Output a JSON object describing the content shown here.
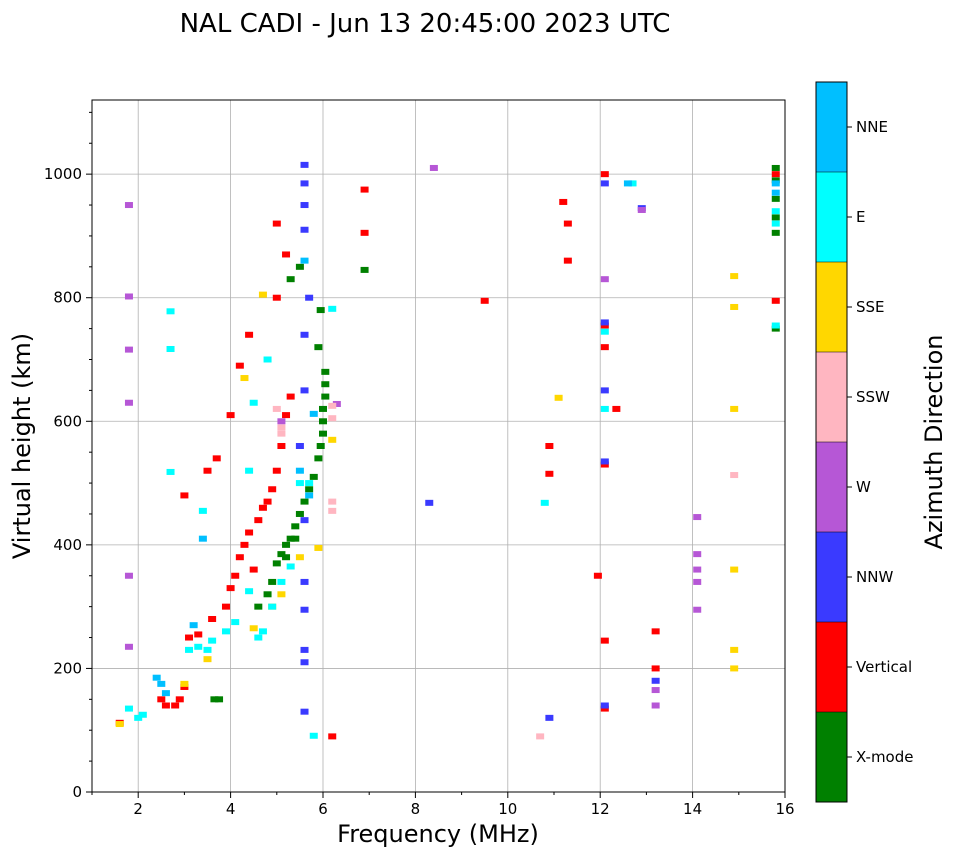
{
  "chart_data": {
    "type": "scatter",
    "title": "NAL CADI - Jun 13 20:45:00 2023 UTC",
    "xlabel": "Frequency (MHz)",
    "ylabel": "Virtual height (km)",
    "xlim": [
      1,
      16
    ],
    "ylim": [
      0,
      1120
    ],
    "xticks": [
      2,
      4,
      6,
      8,
      10,
      12,
      14,
      16
    ],
    "yticks": [
      0,
      200,
      400,
      600,
      800,
      1000
    ],
    "grid": true,
    "colorbar": {
      "label": "Azimuth Direction",
      "categories": [
        "X-mode",
        "Vertical",
        "NNW",
        "W",
        "SSW",
        "SSE",
        "E",
        "NNE"
      ],
      "colors": [
        "#008000",
        "#ff0000",
        "#3a3aff",
        "#b657d6",
        "#ffb6c1",
        "#ffd700",
        "#00ffff",
        "#00bfff"
      ]
    },
    "series": [
      {
        "name": "X-mode",
        "points": [
          [
            3.65,
            150
          ],
          [
            3.75,
            150
          ],
          [
            4.6,
            300
          ],
          [
            4.8,
            320
          ],
          [
            4.9,
            340
          ],
          [
            5.0,
            370
          ],
          [
            5.1,
            385
          ],
          [
            5.2,
            400
          ],
          [
            5.3,
            410
          ],
          [
            5.4,
            430
          ],
          [
            5.5,
            450
          ],
          [
            5.6,
            470
          ],
          [
            5.7,
            490
          ],
          [
            5.8,
            510
          ],
          [
            5.9,
            540
          ],
          [
            5.95,
            560
          ],
          [
            6.0,
            580
          ],
          [
            6.0,
            600
          ],
          [
            6.0,
            620
          ],
          [
            6.05,
            640
          ],
          [
            6.05,
            660
          ],
          [
            6.05,
            680
          ],
          [
            5.9,
            720
          ],
          [
            5.95,
            780
          ],
          [
            5.5,
            850
          ],
          [
            5.3,
            830
          ],
          [
            5.4,
            410
          ],
          [
            5.2,
            380
          ],
          [
            6.9,
            845
          ],
          [
            15.8,
            1010
          ],
          [
            15.8,
            990
          ],
          [
            15.8,
            960
          ],
          [
            15.8,
            930
          ],
          [
            15.8,
            905
          ],
          [
            15.8,
            750
          ]
        ]
      },
      {
        "name": "Vertical",
        "points": [
          [
            1.6,
            112
          ],
          [
            2.5,
            150
          ],
          [
            2.6,
            140
          ],
          [
            2.8,
            140
          ],
          [
            2.9,
            150
          ],
          [
            3.0,
            170
          ],
          [
            3.1,
            250
          ],
          [
            3.3,
            255
          ],
          [
            3.6,
            280
          ],
          [
            3.9,
            300
          ],
          [
            4.0,
            330
          ],
          [
            4.1,
            350
          ],
          [
            4.2,
            380
          ],
          [
            4.3,
            400
          ],
          [
            4.4,
            420
          ],
          [
            4.5,
            360
          ],
          [
            4.6,
            440
          ],
          [
            4.7,
            460
          ],
          [
            4.8,
            470
          ],
          [
            4.9,
            490
          ],
          [
            5.0,
            520
          ],
          [
            5.1,
            560
          ],
          [
            5.2,
            610
          ],
          [
            5.3,
            640
          ],
          [
            4.0,
            610
          ],
          [
            4.2,
            690
          ],
          [
            4.4,
            740
          ],
          [
            3.7,
            540
          ],
          [
            3.5,
            520
          ],
          [
            3.0,
            480
          ],
          [
            5.0,
            800
          ],
          [
            5.2,
            870
          ],
          [
            5.0,
            920
          ],
          [
            6.2,
            90
          ],
          [
            6.9,
            905
          ],
          [
            6.9,
            975
          ],
          [
            10.9,
            560
          ],
          [
            10.9,
            515
          ],
          [
            11.3,
            920
          ],
          [
            11.3,
            860
          ],
          [
            11.2,
            955
          ],
          [
            9.5,
            795
          ],
          [
            12.1,
            1000
          ],
          [
            12.1,
            720
          ],
          [
            12.1,
            755
          ],
          [
            12.1,
            530
          ],
          [
            12.1,
            245
          ],
          [
            12.1,
            135
          ],
          [
            11.95,
            350
          ],
          [
            12.35,
            620
          ],
          [
            13.2,
            260
          ],
          [
            13.2,
            200
          ],
          [
            15.8,
            795
          ],
          [
            15.8,
            1000
          ]
        ]
      },
      {
        "name": "NNW",
        "points": [
          [
            5.6,
            1015
          ],
          [
            5.6,
            985
          ],
          [
            5.6,
            950
          ],
          [
            5.6,
            910
          ],
          [
            5.7,
            800
          ],
          [
            5.6,
            740
          ],
          [
            5.6,
            650
          ],
          [
            5.6,
            440
          ],
          [
            5.6,
            340
          ],
          [
            5.6,
            295
          ],
          [
            5.6,
            230
          ],
          [
            5.6,
            210
          ],
          [
            5.6,
            130
          ],
          [
            5.5,
            560
          ],
          [
            8.3,
            468
          ],
          [
            10.9,
            120
          ],
          [
            12.1,
            985
          ],
          [
            12.1,
            760
          ],
          [
            12.1,
            650
          ],
          [
            12.1,
            535
          ],
          [
            12.1,
            140
          ],
          [
            13.2,
            180
          ],
          [
            12.9,
            945
          ]
        ]
      },
      {
        "name": "W",
        "points": [
          [
            1.8,
            950
          ],
          [
            1.8,
            802
          ],
          [
            1.8,
            716
          ],
          [
            1.8,
            630
          ],
          [
            1.8,
            350
          ],
          [
            1.8,
            235
          ],
          [
            5.1,
            600
          ],
          [
            6.3,
            628
          ],
          [
            8.4,
            1010
          ],
          [
            12.9,
            942
          ],
          [
            14.1,
            445
          ],
          [
            14.1,
            385
          ],
          [
            14.1,
            360
          ],
          [
            14.1,
            340
          ],
          [
            14.1,
            295
          ],
          [
            13.2,
            165
          ],
          [
            13.2,
            140
          ],
          [
            12.1,
            830
          ]
        ]
      },
      {
        "name": "SSW",
        "points": [
          [
            6.2,
            470
          ],
          [
            6.2,
            455
          ],
          [
            6.2,
            625
          ],
          [
            6.2,
            605
          ],
          [
            10.7,
            90
          ],
          [
            14.9,
            513
          ],
          [
            5.1,
            590
          ],
          [
            5.1,
            580
          ],
          [
            5.0,
            620
          ]
        ]
      },
      {
        "name": "SSE",
        "points": [
          [
            1.6,
            110
          ],
          [
            3.0,
            175
          ],
          [
            3.5,
            215
          ],
          [
            4.5,
            265
          ],
          [
            4.9,
            300
          ],
          [
            5.1,
            320
          ],
          [
            5.5,
            380
          ],
          [
            5.9,
            395
          ],
          [
            6.2,
            570
          ],
          [
            4.3,
            670
          ],
          [
            4.7,
            805
          ],
          [
            11.1,
            638
          ],
          [
            14.9,
            835
          ],
          [
            14.9,
            785
          ],
          [
            14.9,
            620
          ],
          [
            14.9,
            360
          ],
          [
            14.9,
            230
          ],
          [
            14.9,
            200
          ]
        ]
      },
      {
        "name": "E",
        "points": [
          [
            1.8,
            135
          ],
          [
            2.0,
            120
          ],
          [
            2.1,
            125
          ],
          [
            3.1,
            230
          ],
          [
            3.3,
            235
          ],
          [
            3.5,
            230
          ],
          [
            3.6,
            245
          ],
          [
            3.9,
            260
          ],
          [
            4.1,
            275
          ],
          [
            4.4,
            325
          ],
          [
            4.6,
            250
          ],
          [
            4.7,
            260
          ],
          [
            4.9,
            300
          ],
          [
            5.1,
            340
          ],
          [
            5.3,
            365
          ],
          [
            5.5,
            500
          ],
          [
            5.7,
            500
          ],
          [
            4.4,
            520
          ],
          [
            4.5,
            630
          ],
          [
            4.8,
            700
          ],
          [
            3.4,
            455
          ],
          [
            2.7,
            778
          ],
          [
            2.7,
            717
          ],
          [
            2.7,
            518
          ],
          [
            5.8,
            91
          ],
          [
            6.2,
            782
          ],
          [
            10.8,
            468
          ],
          [
            12.1,
            745
          ],
          [
            12.7,
            985
          ],
          [
            15.8,
            940
          ],
          [
            15.8,
            920
          ],
          [
            15.8,
            755
          ],
          [
            12.1,
            620
          ]
        ]
      },
      {
        "name": "NNE",
        "points": [
          [
            2.4,
            185
          ],
          [
            2.5,
            175
          ],
          [
            2.6,
            160
          ],
          [
            3.2,
            270
          ],
          [
            3.4,
            410
          ],
          [
            5.5,
            520
          ],
          [
            5.7,
            480
          ],
          [
            5.6,
            860
          ],
          [
            5.8,
            612
          ],
          [
            15.8,
            985
          ],
          [
            15.8,
            970
          ],
          [
            12.6,
            985
          ]
        ]
      }
    ]
  }
}
